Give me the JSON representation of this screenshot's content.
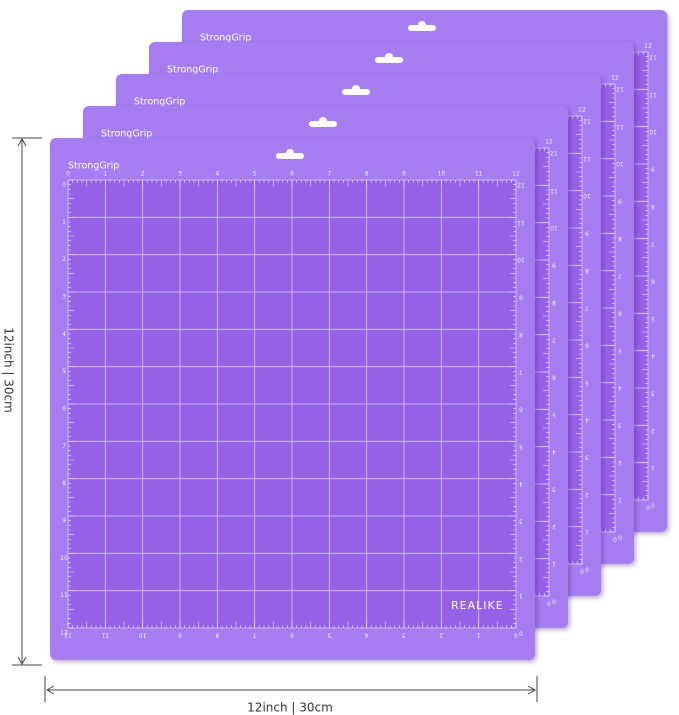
{
  "mats": [
    {
      "label": "StrongGrip"
    },
    {
      "label": "StrongGrip"
    },
    {
      "label": "StrongGrip"
    },
    {
      "label": "StrongGrip"
    },
    {
      "label": "StrongGrip"
    }
  ],
  "brand": "REALIKE",
  "ruler": [
    0,
    1,
    2,
    3,
    4,
    5,
    6,
    7,
    8,
    9,
    10,
    11,
    12
  ],
  "dimensions": {
    "height": "12inch  |  30cm",
    "width": "12inch  |  30cm"
  }
}
